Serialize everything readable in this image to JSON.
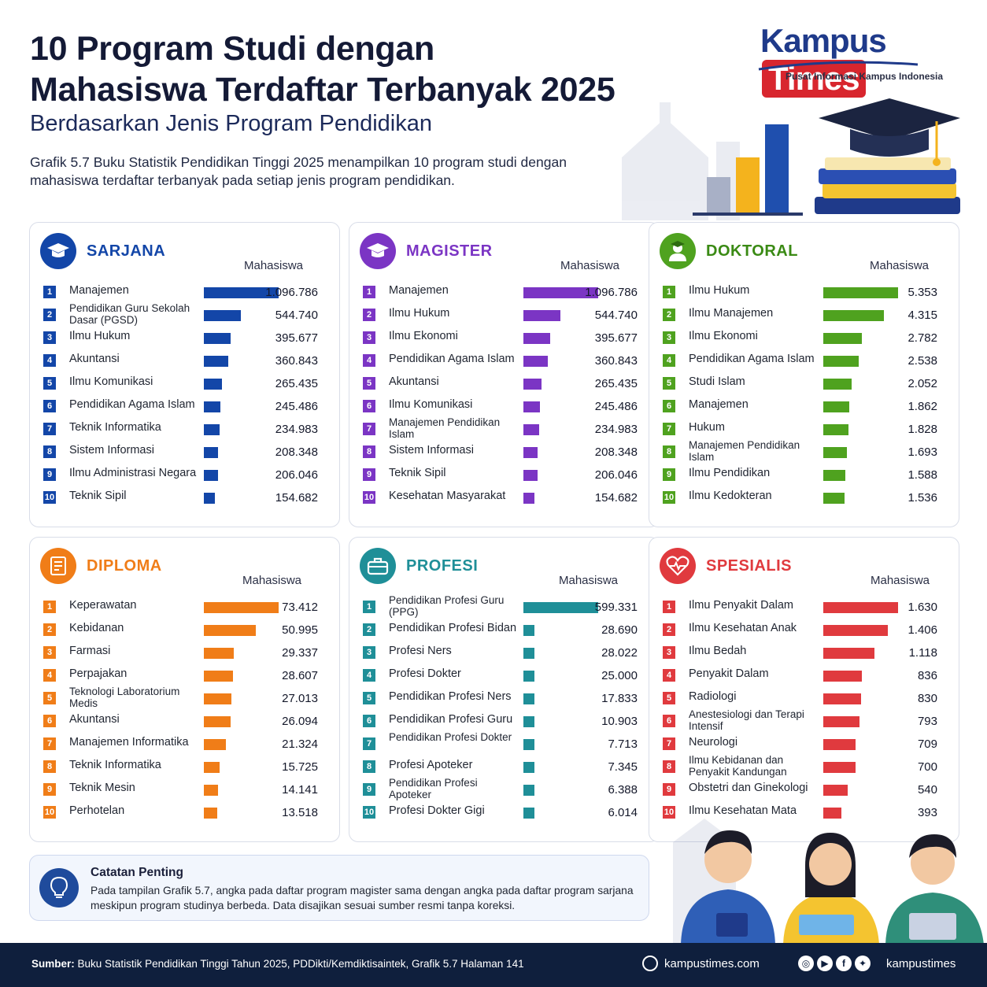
{
  "header": {
    "title_line1": "10 Program Studi dengan",
    "title_line2": "Mahasiswa Terdaftar Terbanyak 2025",
    "subtitle": "Berdasarkan Jenis Program Pendidikan",
    "intro": "Grafik 5.7 Buku Statistik Pendidikan Tinggi 2025 menampilkan 10 program studi dengan mahasiswa terdaftar terbanyak pada setiap jenis program pendidikan."
  },
  "logo": {
    "part1": "Kampus",
    "part2": "Times",
    "tagline": "Pusat Informasi Kampus Indonesia"
  },
  "colors": {
    "sarjana": "#1346a8",
    "magister": "#7b35c4",
    "doktoral": "#4fa21f",
    "diploma": "#f07d18",
    "profesi": "#1f8f98",
    "spesialis": "#e03a3e"
  },
  "chart_data": [
    {
      "type": "bar",
      "title": "SARJANA",
      "value_label": "Mahasiswa",
      "icon": "graduation-cap-icon",
      "categories": [
        "Manajemen",
        "Pendidikan Guru Sekolah Dasar (PGSD)",
        "Ilmu Hukum",
        "Akuntansi",
        "Ilmu Komunikasi",
        "Pendidikan Agama Islam",
        "Teknik Informatika",
        "Sistem Informasi",
        "Ilmu Administrasi Negara",
        "Teknik Sipil"
      ],
      "labels": [
        "1.096.786",
        "544.740",
        "395.677",
        "360.843",
        "265.435",
        "245.486",
        "234.983",
        "208.348",
        "206.046",
        "154.682"
      ],
      "values": [
        1096786,
        544740,
        395677,
        360843,
        265435,
        245486,
        234983,
        208348,
        206046,
        154682
      ]
    },
    {
      "type": "bar",
      "title": "MAGISTER",
      "value_label": "Mahasiswa",
      "icon": "graduation-cap-icon",
      "categories": [
        "Manajemen",
        "Ilmu Hukum",
        "Ilmu Ekonomi",
        "Pendidikan Agama Islam",
        "Akuntansi",
        "Ilmu Komunikasi",
        "Manajemen Pendidikan Islam",
        "Sistem Informasi",
        "Teknik Sipil",
        "Kesehatan Masyarakat"
      ],
      "labels": [
        "1.096.786",
        "544.740",
        "395.677",
        "360.843",
        "265.435",
        "245.486",
        "234.983",
        "208.348",
        "206.046",
        "154.682"
      ],
      "values": [
        1096786,
        544740,
        395677,
        360843,
        265435,
        245486,
        234983,
        208348,
        206046,
        154682
      ]
    },
    {
      "type": "bar",
      "title": "DOKTORAL",
      "value_label": "Mahasiswa",
      "icon": "scholar-icon",
      "categories": [
        "Ilmu Hukum",
        "Ilmu Manajemen",
        "Ilmu Ekonomi",
        "Pendidikan Agama Islam",
        "Studi Islam",
        "Manajemen",
        "Hukum",
        "Manajemen Pendidikan Islam",
        "Ilmu Pendidikan",
        "Ilmu Kedokteran"
      ],
      "labels": [
        "5.353",
        "4.315",
        "2.782",
        "2.538",
        "2.052",
        "1.862",
        "1.828",
        "1.693",
        "1.588",
        "1.536"
      ],
      "values": [
        5353,
        4315,
        2782,
        2538,
        2052,
        1862,
        1828,
        1693,
        1588,
        1536
      ]
    },
    {
      "type": "bar",
      "title": "DIPLOMA",
      "value_label": "Mahasiswa",
      "icon": "document-icon",
      "categories": [
        "Keperawatan",
        "Kebidanan",
        "Farmasi",
        "Perpajakan",
        "Teknologi Laboratorium Medis",
        "Akuntansi",
        "Manajemen Informatika",
        "Teknik Informatika",
        "Teknik Mesin",
        "Perhotelan"
      ],
      "labels": [
        "73.412",
        "50.995",
        "29.337",
        "28.607",
        "27.013",
        "26.094",
        "21.324",
        "15.725",
        "14.141",
        "13.518"
      ],
      "values": [
        73412,
        50995,
        29337,
        28607,
        27013,
        26094,
        21324,
        15725,
        14141,
        13518
      ]
    },
    {
      "type": "bar",
      "title": "PROFESI",
      "value_label": "Mahasiswa",
      "icon": "briefcase-icon",
      "categories": [
        "Pendidikan Profesi Guru (PPG)",
        "Pendidikan Profesi Bidan",
        "Profesi Ners",
        "Profesi Dokter",
        "Pendidikan Profesi Ners",
        "Pendidikan Profesi Guru",
        "Pendidikan Profesi Dokter",
        "Profesi Apoteker",
        "Pendidikan Profesi Apoteker",
        "Profesi Dokter Gigi"
      ],
      "labels": [
        "599.331",
        "28.690",
        "28.022",
        "25.000",
        "17.833",
        "10.903",
        "7.713",
        "7.345",
        "6.388",
        "6.014"
      ],
      "values": [
        599331,
        28690,
        28022,
        25000,
        17833,
        10903,
        7713,
        7345,
        6388,
        6014
      ]
    },
    {
      "type": "bar",
      "title": "SPESIALIS",
      "value_label": "Mahasiswa",
      "icon": "heart-pulse-icon",
      "categories": [
        "Ilmu Penyakit Dalam",
        "Ilmu Kesehatan Anak",
        "Ilmu Bedah",
        "Penyakit Dalam",
        "Radiologi",
        "Anestesiologi dan Terapi Intensif",
        "Neurologi",
        "Ilmu Kebidanan dan Penyakit Kandungan",
        "Obstetri dan Ginekologi",
        "Ilmu Kesehatan Mata"
      ],
      "labels": [
        "1.630",
        "1.406",
        "1.118",
        "836",
        "830",
        "793",
        "709",
        "700",
        "540",
        "393"
      ],
      "values": [
        1630,
        1406,
        1118,
        836,
        830,
        793,
        709,
        700,
        540,
        393
      ]
    }
  ],
  "note": {
    "title": "Catatan Penting",
    "text": "Pada tampilan Grafik 5.7, angka pada daftar program magister sama dengan angka pada daftar program sarjana meskipun program studinya berbeda. Data disajikan sesuai sumber resmi tanpa koreksi."
  },
  "footer": {
    "source_label": "Sumber:",
    "source_text": "Buku Statistik Pendidikan Tinggi Tahun 2025, PDDikti/Kemdiktisaintek, Grafik 5.7 Halaman 141",
    "website": "kampustimes.com",
    "handle": "kampustimes"
  }
}
